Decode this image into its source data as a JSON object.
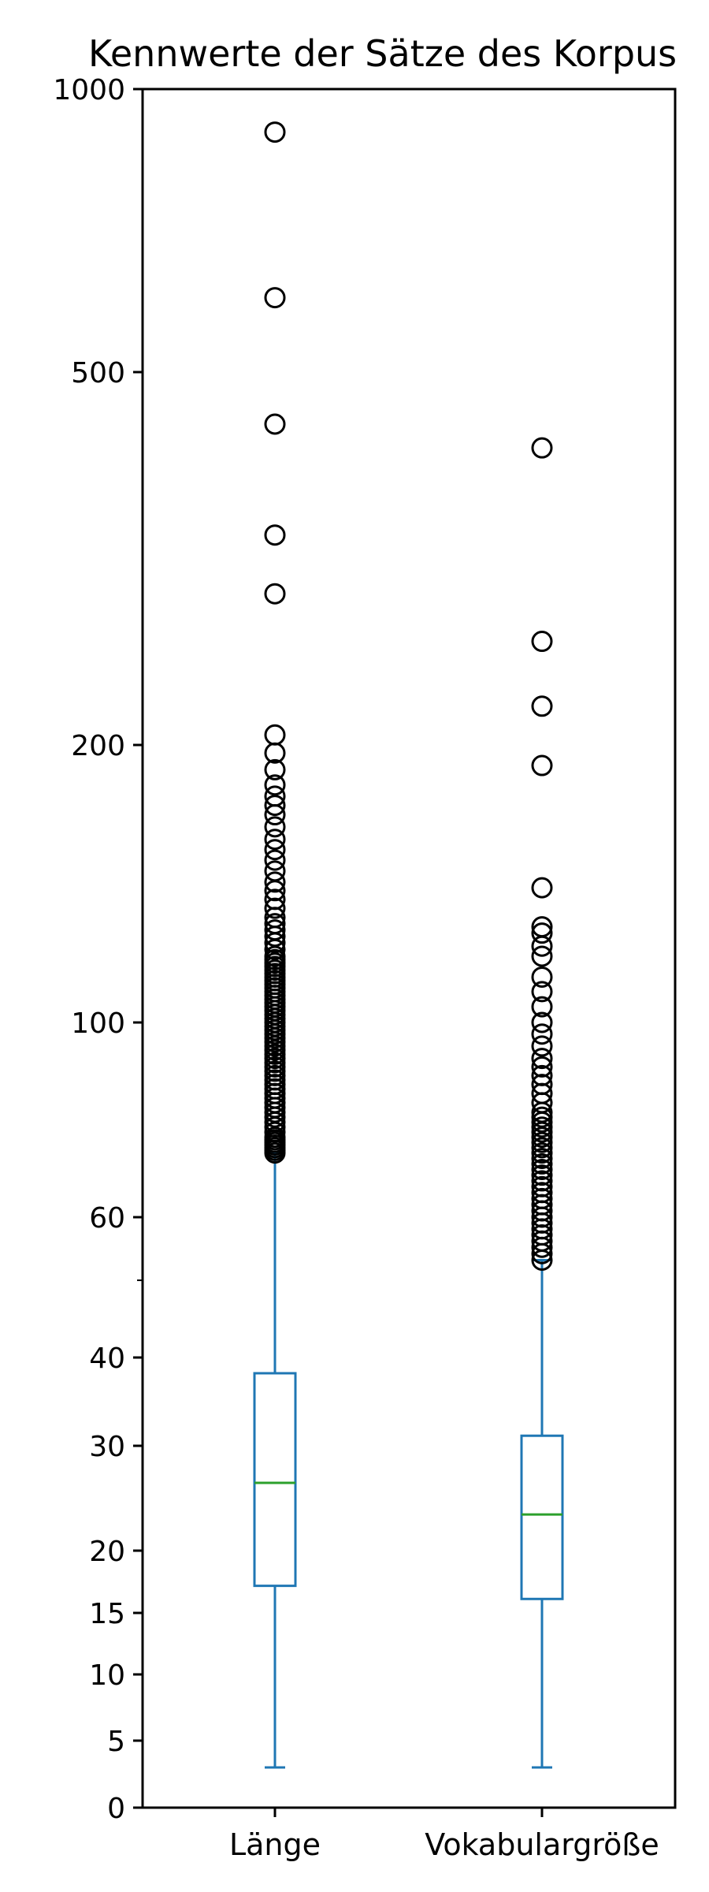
{
  "chart_data": {
    "type": "boxplot",
    "title": "Kennwerte der Sätze des Korpus",
    "xlabel": "",
    "ylabel": "",
    "yscale": "symlog",
    "ylim": [
      0,
      1000
    ],
    "yticks": [
      0,
      5,
      10,
      15,
      20,
      30,
      40,
      60,
      100,
      200,
      500,
      1000
    ],
    "ytick_labels": [
      "0",
      "5",
      "10",
      "15",
      "20",
      "30",
      "40",
      "60",
      "100",
      "200",
      "500",
      "1000"
    ],
    "minor_yticks": [
      50
    ],
    "grid": false,
    "legend": "none",
    "colors": {
      "box": "#1f77b4",
      "median": "#2ca02c",
      "flier": "#000000"
    },
    "categories": [
      "Länge",
      "Vokabulargröße"
    ],
    "boxes": [
      {
        "category": "Länge",
        "whislo": 3,
        "q1": 17,
        "median": 26,
        "q3": 38,
        "whishi": 71,
        "fliers": [
          71,
          71.5,
          72,
          72.5,
          73,
          73.5,
          74,
          75,
          76,
          77,
          78,
          79,
          80,
          81,
          82,
          83,
          84,
          85,
          86,
          87,
          88,
          89,
          90,
          91,
          92,
          93,
          94,
          95,
          96,
          97,
          98,
          99,
          100,
          101,
          102,
          103,
          104,
          105,
          106,
          107,
          108,
          109,
          110,
          111,
          112,
          113,
          114,
          115,
          116,
          117,
          118,
          120,
          122,
          124,
          126,
          128,
          130,
          133,
          136,
          139,
          142,
          146,
          150,
          154,
          158,
          163,
          168,
          172,
          176,
          181,
          188,
          196,
          205,
          290,
          335,
          440,
          600,
          900
        ]
      },
      {
        "category": "Vokabulargröße",
        "whislo": 3,
        "q1": 16,
        "median": 23,
        "q3": 31,
        "whishi": 53,
        "fliers": [
          53,
          54,
          55,
          56,
          57,
          58,
          59,
          60,
          61,
          62,
          63,
          64,
          65,
          66,
          67,
          68,
          69,
          70,
          71,
          72,
          73,
          74,
          75,
          76,
          77,
          78,
          79,
          81,
          83,
          85,
          87,
          89,
          91,
          94,
          97,
          100,
          104,
          108,
          112,
          118,
          121,
          125,
          127,
          140,
          190,
          220,
          258,
          415
        ]
      }
    ]
  }
}
